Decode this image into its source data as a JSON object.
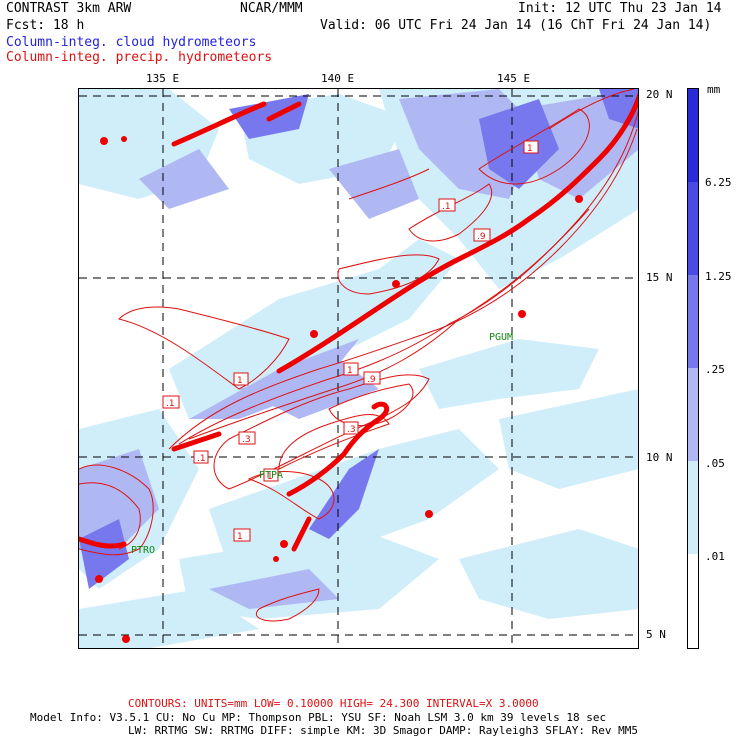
{
  "header": {
    "model": "CONTRAST  3km ARW",
    "center": "NCAR/MMM",
    "init": "Init: 12 UTC Thu 23 Jan 14",
    "fcst": "Fcst:   18 h",
    "valid": "Valid: 06 UTC Fri 24 Jan 14 (16 ChT Fri 24 Jan 14)",
    "legend_cloud": "Column-integ. cloud hydrometeors",
    "legend_precip": "Column-integ. precip. hydrometeors"
  },
  "map": {
    "lon_labels": [
      "135 E",
      "140 E",
      "145 E"
    ],
    "lat_labels": [
      "20 N",
      "15 N",
      "10 N",
      "5 N"
    ],
    "stations": [
      "PGUM",
      "PTPA",
      "PTRO"
    ],
    "contour_labels": [
      "1",
      "1",
      ".1",
      ".9",
      ".3",
      ".1",
      ".9",
      "1",
      ".1",
      "1",
      "1",
      ".3"
    ]
  },
  "colorbar": {
    "unit": "mm",
    "labels": [
      "6.25",
      "1.25",
      ".25",
      ".05",
      ".01"
    ],
    "colors": [
      "#2a2ad8",
      "#4a4ae6",
      "#7878ee",
      "#b0b8f4",
      "#cfeefa",
      "#ffffff"
    ]
  },
  "footer": {
    "contours": "CONTOURS:  UNITS=mm  LOW= 0.10000      HIGH= 24.300      INTERVAL=X  3.0000",
    "model_info": "Model Info: V3.5.1     CU: No Cu     MP: Thompson     PBL: YSU       SF: Noah LSM     3.0 km   39 levels    18 sec",
    "model_info2": "LW: RRTMG    SW: RRTMG   DIFF: simple KM: 3D Smagor DAMP: Rayleigh3  SFLAY: Rev MM5"
  }
}
